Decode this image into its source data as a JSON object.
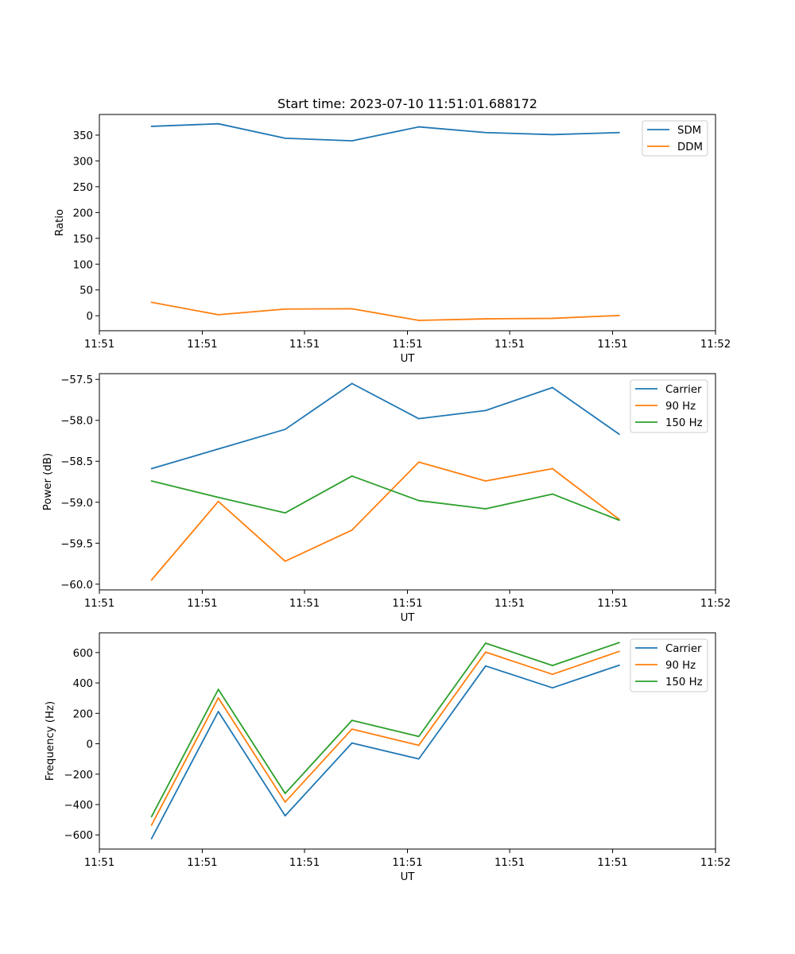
{
  "figure": {
    "title": "Start time: 2023-07-10 11:51:01.688172"
  },
  "chart_data": [
    {
      "type": "line",
      "title": "Start time: 2023-07-10 11:51:01.688172",
      "xlabel": "UT",
      "ylabel": "Ratio",
      "x_tick_labels": [
        "11:51",
        "11:51",
        "11:51",
        "11:51",
        "11:51",
        "11:51",
        "11:52"
      ],
      "x_index": [
        0,
        1,
        2,
        3,
        4,
        5,
        6,
        7
      ],
      "xlim": [
        -0.78,
        8.44
      ],
      "x_ticks": [
        -0.78,
        0.76,
        2.29,
        3.83,
        5.36,
        6.9,
        8.44
      ],
      "ylim": [
        -29,
        390
      ],
      "y_ticks": [
        0,
        50,
        100,
        150,
        200,
        250,
        300,
        350
      ],
      "legend": "top-right",
      "series": [
        {
          "name": "SDM",
          "color": "#1f77b4",
          "values": [
            367,
            372,
            344,
            339,
            366,
            355,
            351,
            355
          ]
        },
        {
          "name": "DDM",
          "color": "#ff7f0e",
          "values": [
            26,
            2,
            13,
            13.5,
            -9,
            -6,
            -5,
            0.5
          ]
        }
      ]
    },
    {
      "type": "line",
      "title": "",
      "xlabel": "UT",
      "ylabel": "Power (dB)",
      "x_tick_labels": [
        "11:51",
        "11:51",
        "11:51",
        "11:51",
        "11:51",
        "11:51",
        "11:52"
      ],
      "x_index": [
        0,
        1,
        2,
        3,
        4,
        5,
        6,
        7
      ],
      "xlim": [
        -0.78,
        8.44
      ],
      "x_ticks": [
        -0.78,
        0.76,
        2.29,
        3.83,
        5.36,
        6.9,
        8.44
      ],
      "ylim": [
        -60.07,
        -57.43
      ],
      "y_ticks": [
        -60.0,
        -59.5,
        -59.0,
        -58.5,
        -58.0,
        -57.5
      ],
      "y_tick_labels": [
        "−60.0",
        "−59.5",
        "−59.0",
        "−58.5",
        "−58.0",
        "−57.5"
      ],
      "legend": "top-right",
      "series": [
        {
          "name": "Carrier",
          "color": "#1f77b4",
          "values": [
            -58.59,
            -58.35,
            -58.11,
            -57.55,
            -57.98,
            -57.88,
            -57.6,
            -58.17
          ]
        },
        {
          "name": "90 Hz",
          "color": "#ff7f0e",
          "values": [
            -59.95,
            -58.99,
            -59.72,
            -59.34,
            -58.51,
            -58.74,
            -58.59,
            -59.21
          ]
        },
        {
          "name": "150 Hz",
          "color": "#2ca02c",
          "values": [
            -58.74,
            -58.94,
            -59.13,
            -58.68,
            -58.98,
            -59.08,
            -58.9,
            -59.22
          ]
        }
      ]
    },
    {
      "type": "line",
      "title": "",
      "xlabel": "UT",
      "ylabel": "Frequency (Hz)",
      "x_tick_labels": [
        "11:51",
        "11:51",
        "11:51",
        "11:51",
        "11:51",
        "11:51",
        "11:52"
      ],
      "x_index": [
        0,
        1,
        2,
        3,
        4,
        5,
        6,
        7
      ],
      "xlim": [
        -0.78,
        8.44
      ],
      "x_ticks": [
        -0.78,
        0.76,
        2.29,
        3.83,
        5.36,
        6.9,
        8.44
      ],
      "ylim": [
        -693,
        730
      ],
      "y_ticks": [
        -600,
        -400,
        -200,
        0,
        200,
        400,
        600
      ],
      "y_tick_labels": [
        "−600",
        "−400",
        "−200",
        "0",
        "200",
        "400",
        "600"
      ],
      "legend": "top-right",
      "series": [
        {
          "name": "Carrier",
          "color": "#1f77b4",
          "values": [
            -625,
            212,
            -474,
            5,
            -100,
            512,
            368,
            517
          ]
        },
        {
          "name": "90 Hz",
          "color": "#ff7f0e",
          "values": [
            -536,
            302,
            -384,
            96,
            -10,
            603,
            457,
            608
          ]
        },
        {
          "name": "150 Hz",
          "color": "#2ca02c",
          "values": [
            -480,
            358,
            -327,
            154,
            48,
            662,
            515,
            666
          ]
        }
      ]
    }
  ]
}
